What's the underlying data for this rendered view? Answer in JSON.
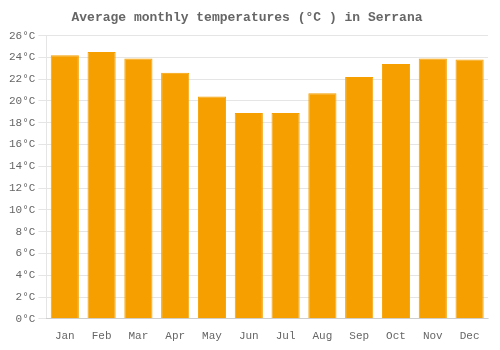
{
  "chart_data": {
    "type": "bar",
    "title": "Average monthly temperatures (°C ) in Serrana",
    "categories": [
      "Jan",
      "Feb",
      "Mar",
      "Apr",
      "May",
      "Jun",
      "Jul",
      "Aug",
      "Sep",
      "Oct",
      "Nov",
      "Dec"
    ],
    "values": [
      24.2,
      24.5,
      23.9,
      22.6,
      20.4,
      18.9,
      18.9,
      20.7,
      22.2,
      23.4,
      23.9,
      23.8
    ],
    "color": "#F5A000",
    "ylim": [
      0,
      26
    ],
    "yticks": [
      {
        "value": 0,
        "label": "0°C"
      },
      {
        "value": 2,
        "label": "2°C"
      },
      {
        "value": 4,
        "label": "4°C"
      },
      {
        "value": 6,
        "label": "6°C"
      },
      {
        "value": 8,
        "label": "8°C"
      },
      {
        "value": 10,
        "label": "10°C"
      },
      {
        "value": 12,
        "label": "12°C"
      },
      {
        "value": 14,
        "label": "14°C"
      },
      {
        "value": 16,
        "label": "16°C"
      },
      {
        "value": 18,
        "label": "18°C"
      },
      {
        "value": 20,
        "label": "20°C"
      },
      {
        "value": 22,
        "label": "22°C"
      },
      {
        "value": 24,
        "label": "24°C"
      },
      {
        "value": 26,
        "label": "26°C"
      }
    ],
    "grid": true
  }
}
